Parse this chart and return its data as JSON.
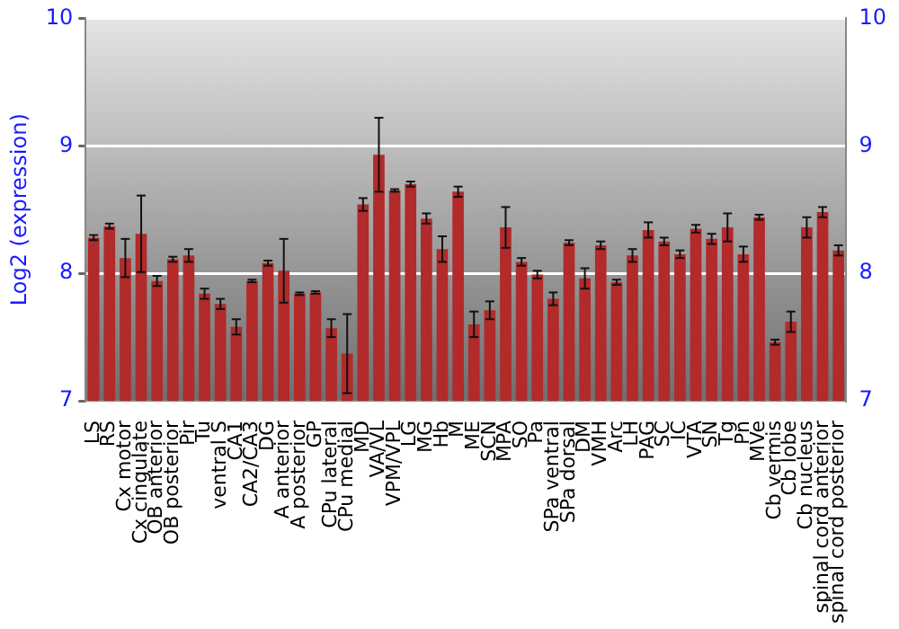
{
  "chart_data": {
    "type": "bar",
    "ylabel": "Log2 (expression)",
    "categories": [
      "LS",
      "RS",
      "Cx motor",
      "Cx cingulate",
      "OB anterior",
      "OB posterior",
      "Pir",
      "Tu",
      "ventral S",
      "CA1",
      "CA2/CA3",
      "DG",
      "A anterior",
      "A posterior",
      "GP",
      "CPu lateral",
      "CPu medial",
      "MD",
      "VA/VL",
      "VPM/VPL",
      "LG",
      "MG",
      "Hb",
      "M",
      "ME",
      "SCN",
      "MPA",
      "SO",
      "Pa",
      "SPa ventral",
      "SPa dorsal",
      "DM",
      "VMH",
      "Arc",
      "LH",
      "PAG",
      "SC",
      "IC",
      "VTA",
      "SN",
      "Tg",
      "Pn",
      "MVe",
      "Cb vermis",
      "Cb lobe",
      "Cb nucleus",
      "spinal cord anterior",
      "spinal cord posterior"
    ],
    "values": [
      8.28,
      8.37,
      8.12,
      8.31,
      7.94,
      8.11,
      8.14,
      7.84,
      7.76,
      7.58,
      7.94,
      8.08,
      8.02,
      7.84,
      7.85,
      7.57,
      7.37,
      8.54,
      8.93,
      8.65,
      8.7,
      8.43,
      8.19,
      8.64,
      7.6,
      7.71,
      8.36,
      8.09,
      7.99,
      7.8,
      8.24,
      7.96,
      8.22,
      7.93,
      8.14,
      8.34,
      8.25,
      8.15,
      8.35,
      8.27,
      8.36,
      8.15,
      8.44,
      7.46,
      7.62,
      8.36,
      8.48,
      8.18
    ],
    "errors": [
      0.02,
      0.02,
      0.15,
      0.3,
      0.04,
      0.02,
      0.05,
      0.04,
      0.04,
      0.06,
      0.01,
      0.02,
      0.25,
      0.01,
      0.01,
      0.07,
      0.31,
      0.05,
      0.29,
      0.01,
      0.02,
      0.04,
      0.1,
      0.04,
      0.1,
      0.07,
      0.16,
      0.03,
      0.03,
      0.05,
      0.02,
      0.08,
      0.03,
      0.02,
      0.05,
      0.06,
      0.03,
      0.03,
      0.03,
      0.04,
      0.11,
      0.06,
      0.02,
      0.02,
      0.08,
      0.08,
      0.04,
      0.04
    ],
    "color": "#b22a2a",
    "ylim": [
      7,
      10
    ],
    "yticks": [
      7,
      8,
      9,
      10
    ],
    "y2lim": [
      7,
      10
    ],
    "y2ticks": [
      7,
      8,
      9,
      10
    ],
    "grid": "y",
    "legend": false
  }
}
